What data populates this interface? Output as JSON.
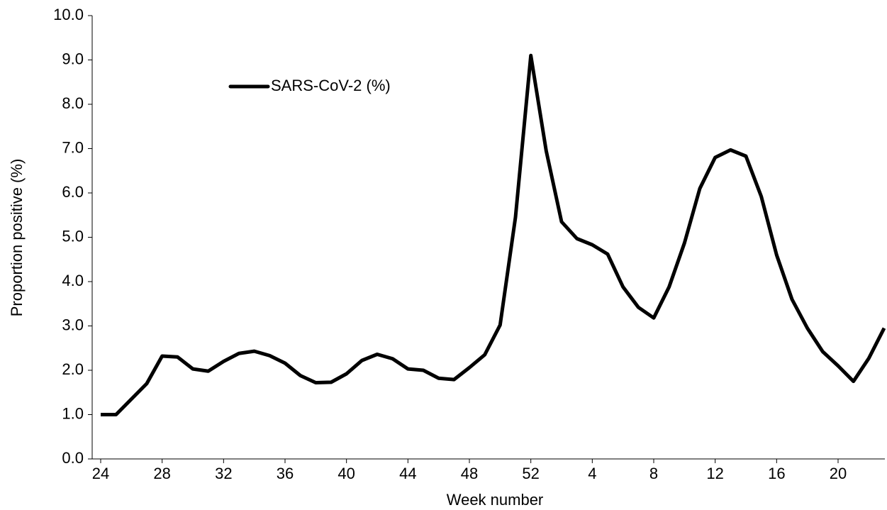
{
  "chart_data": {
    "type": "line",
    "xlabel": "Week number",
    "ylabel": "Proportion positive (%)",
    "categories": [
      "24",
      null,
      null,
      null,
      "28",
      null,
      null,
      null,
      "32",
      null,
      null,
      null,
      "36",
      null,
      null,
      null,
      "40",
      null,
      null,
      null,
      "44",
      null,
      null,
      null,
      "48",
      null,
      null,
      null,
      "52",
      null,
      null,
      null,
      "4",
      null,
      null,
      null,
      "8",
      null,
      null,
      null,
      "12",
      null,
      null,
      null,
      "16",
      null,
      null,
      null,
      "20",
      null,
      null,
      null
    ],
    "series": [
      {
        "name": "SARS-CoV-2 (%)",
        "color": "#000000",
        "values": [
          1.0,
          1.0,
          1.35,
          1.7,
          2.32,
          2.3,
          2.03,
          1.98,
          2.2,
          2.38,
          2.43,
          2.33,
          2.16,
          1.88,
          1.72,
          1.73,
          1.92,
          2.22,
          2.36,
          2.26,
          2.03,
          2.0,
          1.82,
          1.79,
          2.06,
          2.35,
          3.02,
          5.45,
          9.1,
          6.95,
          5.35,
          4.97,
          4.83,
          4.62,
          3.88,
          3.42,
          3.18,
          3.88,
          4.87,
          6.1,
          6.8,
          6.97,
          6.83,
          5.92,
          4.6,
          3.6,
          2.95,
          2.42,
          2.1,
          1.75,
          2.27,
          2.95
        ]
      }
    ],
    "ylim": [
      0,
      10
    ],
    "yticks": [
      {
        "value": 0,
        "label": "0.0"
      },
      {
        "value": 1,
        "label": "1.0"
      },
      {
        "value": 2,
        "label": "2.0"
      },
      {
        "value": 3,
        "label": "3.0"
      },
      {
        "value": 4,
        "label": "4.0"
      },
      {
        "value": 5,
        "label": "5.0"
      },
      {
        "value": 6,
        "label": "6.0"
      },
      {
        "value": 7,
        "label": "7.0"
      },
      {
        "value": 8,
        "label": "8.0"
      },
      {
        "value": 9,
        "label": "9.0"
      },
      {
        "value": 10,
        "label": "10.0"
      }
    ],
    "legend": "top-left"
  }
}
